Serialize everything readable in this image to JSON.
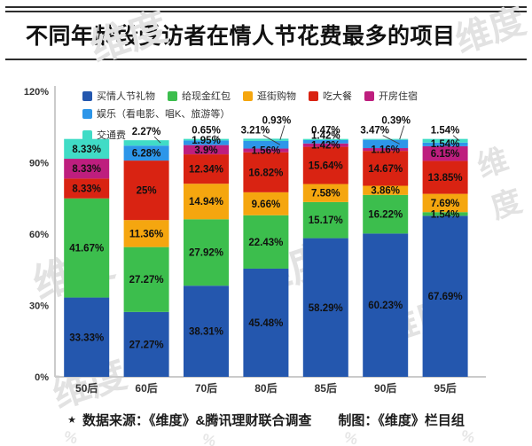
{
  "page": {
    "title": "不同年龄段受访者在情人节花费最多的项目"
  },
  "footer": {
    "star": "★",
    "source": "数据来源：《维度》&腾讯理财联合调查",
    "credit": "制图：《维度》栏目组"
  },
  "watermark": {
    "text": "维度",
    "percent": "%"
  },
  "chart_data": {
    "type": "bar",
    "stacked": true,
    "title": "不同年龄段受访者在情人节花费最多的项目",
    "xlabel": "",
    "ylabel": "",
    "ylim": [
      0,
      120
    ],
    "yticks": [
      "0%",
      "30%",
      "60%",
      "90%",
      "120%"
    ],
    "grid": false,
    "legend_position": "top-left",
    "categories": [
      "50后",
      "60后",
      "70后",
      "80后",
      "85后",
      "90后",
      "95后"
    ],
    "series": [
      {
        "name": "买情人节礼物",
        "color": "#2457AE",
        "values": [
          33.33,
          27.27,
          38.31,
          45.48,
          58.29,
          60.23,
          67.69
        ],
        "labels": [
          "33.33%",
          "27.27%",
          "38.31%",
          "45.48%",
          "58.29%",
          "60.23%",
          "67.69%"
        ]
      },
      {
        "name": "给现金红包",
        "color": "#3CBE4D",
        "values": [
          41.67,
          27.27,
          27.92,
          22.43,
          15.17,
          16.22,
          1.54
        ],
        "labels": [
          "41.67%",
          "27.27%",
          "27.92%",
          "22.43%",
          "15.17%",
          "16.22%",
          "1.54%"
        ]
      },
      {
        "name": "逛街购物",
        "color": "#F5A60F",
        "values": [
          0,
          11.36,
          14.94,
          9.66,
          7.58,
          3.86,
          7.69
        ],
        "labels": [
          "",
          "11.36%",
          "14.94%",
          "9.66%",
          "7.58%",
          "3.86%",
          "7.69%"
        ]
      },
      {
        "name": "吃大餐",
        "color": "#D92312",
        "values": [
          8.33,
          25,
          12.34,
          16.82,
          15.64,
          14.67,
          13.85
        ],
        "labels": [
          "8.33%",
          "25%",
          "12.34%",
          "16.82%",
          "15.64%",
          "14.67%",
          "13.85%"
        ]
      },
      {
        "name": "开房住宿",
        "color": "#BE1E7E",
        "values": [
          8.33,
          0,
          3.9,
          1.56,
          1.42,
          1.16,
          6.15
        ],
        "labels": [
          "8.33%",
          "",
          "3.9%",
          "1.56%",
          "1.42%",
          "1.16%",
          "6.15%"
        ]
      },
      {
        "name": "娱乐（看电影、唱K、旅游等）",
        "color": "#2D96E9",
        "values": [
          0,
          6.28,
          1.95,
          3.21,
          1.42,
          3.47,
          1.54
        ],
        "labels": [
          "",
          "6.28%",
          "1.95%",
          "3.21%",
          "1.42%",
          "3.47%",
          "1.54%"
        ]
      },
      {
        "name": "交通费",
        "color": "#40DCC6",
        "values": [
          8.33,
          2.27,
          0.65,
          0.93,
          0.47,
          0.39,
          1.54
        ],
        "labels": [
          "8.33%",
          "2.27%",
          "0.65%",
          "0.93%",
          "0.47%",
          "0.39%",
          "1.54%"
        ]
      }
    ],
    "callouts": [
      [],
      [
        6
      ],
      [
        6
      ],
      [
        5,
        6
      ],
      [
        6
      ],
      [
        5,
        6
      ],
      [
        6
      ]
    ]
  }
}
